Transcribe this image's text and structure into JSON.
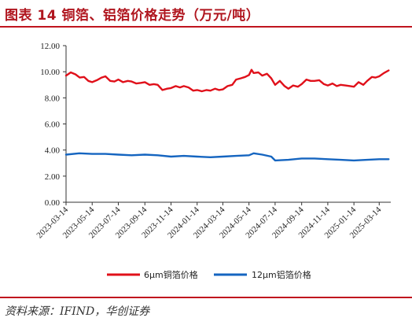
{
  "figure": {
    "title": "图表 14   铜箔、铝箔价格走势（万元/吨）",
    "source": "资料来源：IFIND，华创证券"
  },
  "colors": {
    "accent": "#c0141e",
    "copper_series": "#e0101a",
    "aluminum_series": "#1565c0"
  },
  "chart_data": {
    "type": "line",
    "title": "铜箔、铝箔价格走势（万元/吨）",
    "xlabel": "",
    "ylabel": "",
    "ylim": [
      0,
      12
    ],
    "yticks": [
      "0.00",
      "2.00",
      "4.00",
      "6.00",
      "8.00",
      "10.00",
      "12.00"
    ],
    "xticks": [
      "2023-03-14",
      "2023-05-14",
      "2023-07-14",
      "2023-09-14",
      "2023-11-14",
      "2024-01-14",
      "2024-03-14",
      "2024-05-14",
      "2024-07-14",
      "2024-09-14",
      "2024-11-14",
      "2025-01-14",
      "2025-03-14"
    ],
    "xlim": [
      "2023-03-14",
      "2025-04-10"
    ],
    "grid": false,
    "legend_position": "bottom",
    "series": [
      {
        "name": "6μm铜箔价格",
        "color": "#e0101a",
        "x": [
          "2023-03-14",
          "2023-03-25",
          "2023-04-05",
          "2023-04-15",
          "2023-04-25",
          "2023-05-05",
          "2023-05-14",
          "2023-05-25",
          "2023-06-05",
          "2023-06-14",
          "2023-06-25",
          "2023-07-05",
          "2023-07-14",
          "2023-07-25",
          "2023-08-05",
          "2023-08-14",
          "2023-08-25",
          "2023-09-05",
          "2023-09-14",
          "2023-09-25",
          "2023-10-05",
          "2023-10-14",
          "2023-10-25",
          "2023-11-05",
          "2023-11-14",
          "2023-11-25",
          "2023-12-05",
          "2023-12-14",
          "2023-12-25",
          "2024-01-05",
          "2024-01-14",
          "2024-01-25",
          "2024-02-05",
          "2024-02-14",
          "2024-02-25",
          "2024-03-05",
          "2024-03-14",
          "2024-03-25",
          "2024-04-05",
          "2024-04-14",
          "2024-04-25",
          "2024-05-05",
          "2024-05-14",
          "2024-05-20",
          "2024-05-25",
          "2024-06-05",
          "2024-06-14",
          "2024-06-25",
          "2024-07-05",
          "2024-07-14",
          "2024-07-25",
          "2024-08-05",
          "2024-08-14",
          "2024-08-25",
          "2024-09-05",
          "2024-09-14",
          "2024-09-25",
          "2024-10-05",
          "2024-10-14",
          "2024-10-25",
          "2024-11-05",
          "2024-11-14",
          "2024-11-25",
          "2024-12-05",
          "2024-12-14",
          "2024-12-25",
          "2025-01-05",
          "2025-01-14",
          "2025-01-25",
          "2025-02-05",
          "2025-02-14",
          "2025-02-25",
          "2025-03-05",
          "2025-03-14",
          "2025-03-25",
          "2025-04-05"
        ],
        "values": [
          9.7,
          9.95,
          9.8,
          9.55,
          9.6,
          9.3,
          9.2,
          9.35,
          9.55,
          9.65,
          9.3,
          9.25,
          9.4,
          9.2,
          9.3,
          9.25,
          9.1,
          9.15,
          9.2,
          9.0,
          9.05,
          9.0,
          8.6,
          8.7,
          8.75,
          8.9,
          8.8,
          8.9,
          8.8,
          8.55,
          8.6,
          8.5,
          8.6,
          8.55,
          8.7,
          8.6,
          8.65,
          8.9,
          9.0,
          9.4,
          9.5,
          9.6,
          9.75,
          10.15,
          9.9,
          9.95,
          9.7,
          9.85,
          9.5,
          9.0,
          9.3,
          8.9,
          8.7,
          8.95,
          8.85,
          9.05,
          9.4,
          9.3,
          9.3,
          9.35,
          9.05,
          8.95,
          9.1,
          8.9,
          9.0,
          8.95,
          8.9,
          8.85,
          9.2,
          9.0,
          9.3,
          9.6,
          9.55,
          9.65,
          9.9,
          10.1
        ]
      },
      {
        "name": "12μm铝箔价格",
        "color": "#1565c0",
        "x": [
          "2023-03-14",
          "2023-04-14",
          "2023-05-14",
          "2023-06-14",
          "2023-07-14",
          "2023-08-14",
          "2023-09-14",
          "2023-10-14",
          "2023-11-14",
          "2023-12-14",
          "2024-01-14",
          "2024-02-14",
          "2024-03-14",
          "2024-04-14",
          "2024-05-14",
          "2024-05-25",
          "2024-06-14",
          "2024-07-05",
          "2024-07-14",
          "2024-08-14",
          "2024-09-14",
          "2024-10-14",
          "2024-11-14",
          "2024-12-14",
          "2025-01-14",
          "2025-02-14",
          "2025-03-14",
          "2025-04-05"
        ],
        "values": [
          3.65,
          3.75,
          3.7,
          3.7,
          3.65,
          3.6,
          3.65,
          3.6,
          3.5,
          3.55,
          3.5,
          3.45,
          3.5,
          3.55,
          3.6,
          3.75,
          3.65,
          3.5,
          3.2,
          3.25,
          3.35,
          3.35,
          3.3,
          3.25,
          3.2,
          3.25,
          3.3,
          3.3
        ]
      }
    ]
  }
}
